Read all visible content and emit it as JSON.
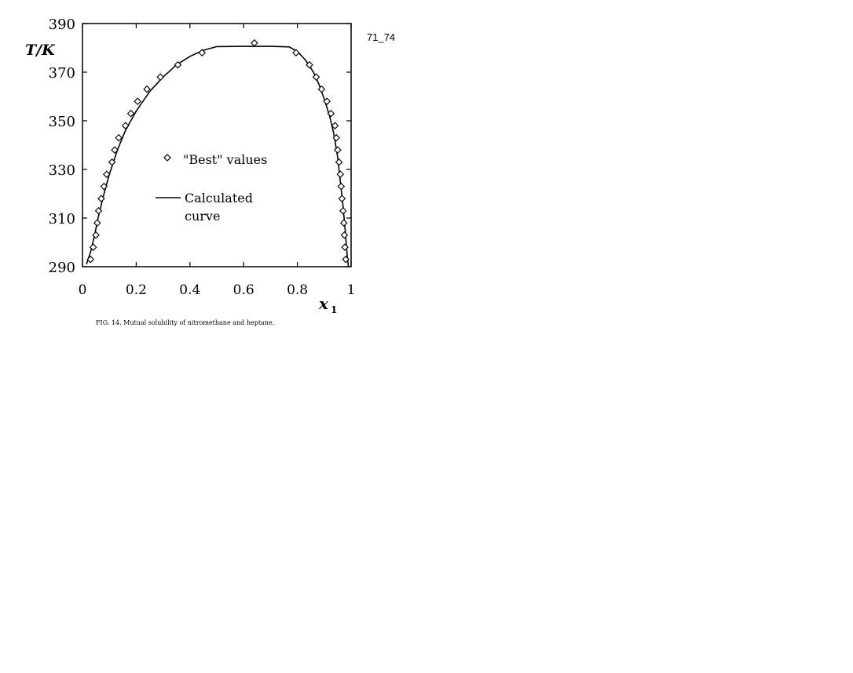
{
  "page_tag": "71_74",
  "chart_data": {
    "type": "scatter",
    "title": "",
    "caption": "FIG. 14. Mutual solubility of nitromethane and heptane.",
    "xlabel_main": "x",
    "xlabel_sub": "1",
    "ylabel": "T/K",
    "xlim": [
      0,
      1
    ],
    "ylim": [
      290,
      390
    ],
    "xticks": [
      0,
      0.2,
      0.4,
      0.6,
      0.8,
      1
    ],
    "xtick_labels": [
      "0",
      "0.2",
      "0.4",
      "0.6",
      "0.8",
      "1"
    ],
    "yticks": [
      290,
      310,
      330,
      350,
      370,
      390
    ],
    "ytick_labels": [
      "290",
      "310",
      "330",
      "350",
      "370",
      "390"
    ],
    "grid": false,
    "legend_position": "center-left",
    "series": [
      {
        "name": "\"Best\" values",
        "marker": "diamond-open",
        "points": [
          [
            0.03,
            293
          ],
          [
            0.04,
            298
          ],
          [
            0.05,
            303
          ],
          [
            0.055,
            308
          ],
          [
            0.06,
            313
          ],
          [
            0.07,
            318
          ],
          [
            0.08,
            323
          ],
          [
            0.09,
            328
          ],
          [
            0.11,
            333
          ],
          [
            0.12,
            338
          ],
          [
            0.135,
            343
          ],
          [
            0.16,
            348
          ],
          [
            0.18,
            353
          ],
          [
            0.205,
            358
          ],
          [
            0.24,
            363
          ],
          [
            0.29,
            368
          ],
          [
            0.355,
            373
          ],
          [
            0.445,
            378
          ],
          [
            0.64,
            382
          ],
          [
            0.795,
            378
          ],
          [
            0.845,
            373
          ],
          [
            0.87,
            368
          ],
          [
            0.89,
            363
          ],
          [
            0.91,
            358
          ],
          [
            0.925,
            353
          ],
          [
            0.94,
            348
          ],
          [
            0.945,
            343
          ],
          [
            0.95,
            338
          ],
          [
            0.955,
            333
          ],
          [
            0.96,
            328
          ],
          [
            0.963,
            323
          ],
          [
            0.966,
            318
          ],
          [
            0.97,
            313
          ],
          [
            0.973,
            308
          ],
          [
            0.975,
            303
          ],
          [
            0.977,
            298
          ],
          [
            0.98,
            293
          ]
        ]
      },
      {
        "name": "Calculated curve",
        "name_lines": [
          "Calculated",
          "curve"
        ],
        "type": "line",
        "points": [
          [
            0.015,
            291
          ],
          [
            0.03,
            296
          ],
          [
            0.045,
            303
          ],
          [
            0.06,
            311
          ],
          [
            0.08,
            320
          ],
          [
            0.1,
            328
          ],
          [
            0.13,
            338
          ],
          [
            0.16,
            346
          ],
          [
            0.2,
            354
          ],
          [
            0.25,
            362
          ],
          [
            0.3,
            368
          ],
          [
            0.35,
            373
          ],
          [
            0.4,
            376.5
          ],
          [
            0.45,
            379
          ],
          [
            0.5,
            380.5
          ],
          [
            0.6,
            380.6
          ],
          [
            0.7,
            380.6
          ],
          [
            0.77,
            380.4
          ],
          [
            0.8,
            378.5
          ],
          [
            0.83,
            375
          ],
          [
            0.86,
            370
          ],
          [
            0.88,
            365
          ],
          [
            0.9,
            359
          ],
          [
            0.92,
            352
          ],
          [
            0.935,
            345
          ],
          [
            0.95,
            335
          ],
          [
            0.96,
            325
          ],
          [
            0.97,
            315
          ],
          [
            0.978,
            305
          ],
          [
            0.985,
            295
          ],
          [
            0.99,
            290
          ]
        ]
      }
    ]
  }
}
